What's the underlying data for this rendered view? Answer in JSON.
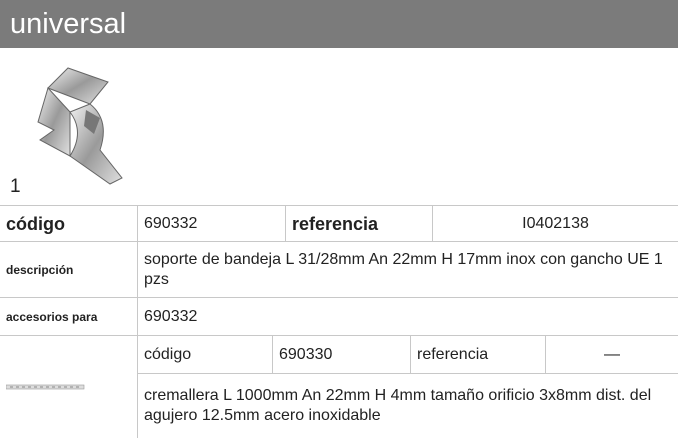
{
  "header": {
    "title": "universal"
  },
  "product": {
    "number": "1"
  },
  "table": {
    "main": {
      "code_label": "código",
      "code": "690332",
      "reference_label": "referencia",
      "reference": "I0402138"
    },
    "description": {
      "label": "descripción",
      "text": "soporte de bandeja  L 31/28mm An 22mm H 17mm inox con gancho UE 1 pzs"
    },
    "accessories": {
      "label": "accesorios para",
      "text": "690332"
    },
    "accessory_item": {
      "code_label": "código",
      "code": "690330",
      "reference_label": "referencia",
      "reference": "—",
      "description": "cremallera  L 1000mm An 22mm H 4mm tamaño orificio 3x8mm dist. del agujero 12.5mm acero inoxidable"
    }
  }
}
